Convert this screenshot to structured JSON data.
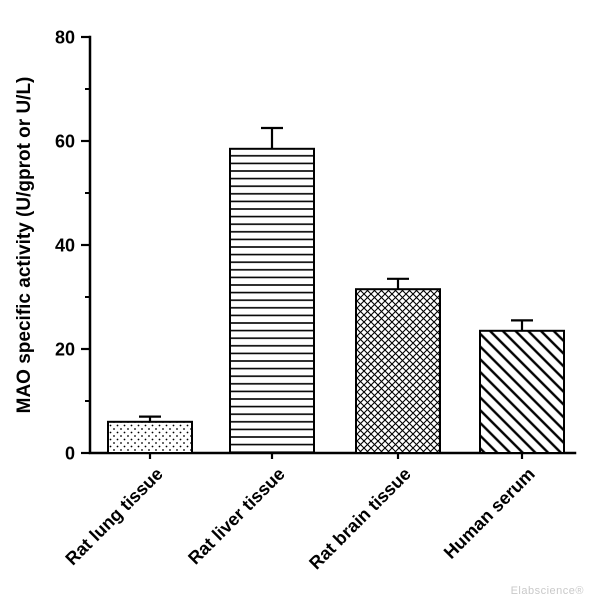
{
  "watermark": "Elabscience®",
  "chart_data": {
    "type": "bar",
    "title": "",
    "xlabel": "",
    "ylabel": "MAO specific activity (U/gprot or U/L)",
    "ylim": [
      0,
      80
    ],
    "y_major_ticks": [
      0,
      20,
      40,
      60,
      80
    ],
    "y_minor_ticks": [
      10,
      30,
      50,
      70
    ],
    "categories": [
      "Rat lung tissue",
      "Rat liver tissue",
      "Rat brain tissue",
      "Human serum"
    ],
    "values": [
      6,
      58.5,
      31.5,
      23.5
    ],
    "errors": [
      1,
      4,
      2,
      2
    ],
    "error_bar_style": "upper-cap",
    "patterns": [
      "dots",
      "horizontal-lines",
      "crosshatch",
      "diagonal-lines"
    ],
    "bar_fill": "#ffffff",
    "bar_stroke": "#000000",
    "axis_color": "#000000",
    "grid": false,
    "legend": "none"
  }
}
